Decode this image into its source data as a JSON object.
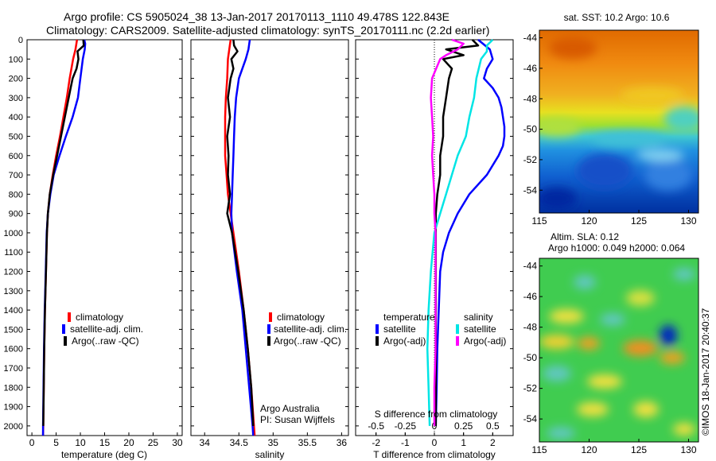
{
  "title_line1": "Argo profile: CS 5905024_38 13-Jan-2017 20170113_1110 49.478S 122.843E",
  "title_line2": "Climatology: CARS2009. Satellite-adjusted climatology: synTS_20170111.nc (2.2d earlier)",
  "map1_title": "sat. SST: 10.2 Argo: 10.6",
  "map2_title1": "Altim. SLA: 0.12",
  "map2_title2": "Argo h1000: 0.049 h2000: 0.064",
  "credit": "©IMOS 18-Jan-2017 20:40:37",
  "footer_org": "Argo Australia",
  "footer_pi": "PI: Susan Wijffels",
  "colors": {
    "climatology": "#ff0000",
    "satellite": "#0000ff",
    "argo": "#000000",
    "sat_salinity": "#00e5e5",
    "argo_salinity": "#ff00ff"
  },
  "chart_data": [
    {
      "type": "line",
      "xlabel": "temperature (deg C)",
      "ylabel": "",
      "xlim": [
        -1,
        31
      ],
      "ylim": [
        2050,
        0
      ],
      "x_ticks": [
        "0",
        "5",
        "10",
        "15",
        "20",
        "25",
        "30"
      ],
      "y_ticks": [
        "0",
        "100",
        "200",
        "300",
        "400",
        "500",
        "600",
        "700",
        "800",
        "900",
        "1000",
        "1100",
        "1200",
        "1300",
        "1400",
        "1500",
        "1600",
        "1700",
        "1800",
        "1900",
        "2000"
      ],
      "legend": [
        "climatology",
        "satellite-adj. clim.",
        "Argo(..raw -QC)"
      ],
      "series": [
        {
          "name": "climatology",
          "depth": [
            0,
            50,
            100,
            200,
            300,
            400,
            500,
            600,
            700,
            800,
            900,
            1000,
            1200,
            1400,
            1600,
            1800,
            2000,
            2050
          ],
          "values": [
            9.3,
            9.0,
            8.5,
            7.8,
            7.2,
            6.5,
            5.8,
            5.0,
            4.3,
            3.7,
            3.3,
            3.1,
            2.9,
            2.7,
            2.55,
            2.45,
            2.35,
            2.3
          ]
        },
        {
          "name": "satellite-adj. clim.",
          "depth": [
            0,
            20,
            50,
            100,
            200,
            300,
            400,
            500,
            600,
            700,
            800,
            900,
            1000,
            1200,
            1400,
            1600,
            1800,
            2000,
            2050
          ],
          "values": [
            10.8,
            11.0,
            10.9,
            10.5,
            10.0,
            9.5,
            8.4,
            7.0,
            5.7,
            4.5,
            3.8,
            3.3,
            3.05,
            2.85,
            2.65,
            2.5,
            2.4,
            2.3,
            2.3
          ]
        },
        {
          "name": "Argo(..raw -QC)",
          "depth": [
            0,
            30,
            60,
            100,
            150,
            200,
            250,
            300,
            400,
            500,
            600,
            700,
            800,
            900,
            1000,
            1200,
            1400,
            1600,
            1800,
            2000
          ],
          "values": [
            10.6,
            10.7,
            9.4,
            9.6,
            9.2,
            8.4,
            8.0,
            7.6,
            6.8,
            6.0,
            5.2,
            4.4,
            3.7,
            3.3,
            3.1,
            2.9,
            2.7,
            2.55,
            2.45,
            2.35
          ]
        }
      ]
    },
    {
      "type": "line",
      "xlabel": "salinity",
      "ylabel": "",
      "xlim": [
        33.8,
        36.1
      ],
      "ylim": [
        2050,
        0
      ],
      "x_ticks": [
        "34",
        "34.5",
        "35",
        "35.5",
        "36"
      ],
      "legend": [
        "climatology",
        "satellite-adj. clim.",
        "Argo(..raw -QC)"
      ],
      "series": [
        {
          "name": "climatology",
          "depth": [
            0,
            50,
            100,
            200,
            300,
            400,
            500,
            600,
            700,
            800,
            900,
            1000,
            1200,
            1400,
            1600,
            1800,
            2000,
            2050
          ],
          "values": [
            34.38,
            34.36,
            34.34,
            34.33,
            34.31,
            34.3,
            34.3,
            34.3,
            34.32,
            34.34,
            34.38,
            34.42,
            34.5,
            34.57,
            34.63,
            34.68,
            34.72,
            34.73
          ]
        },
        {
          "name": "satellite-adj. clim.",
          "depth": [
            0,
            50,
            100,
            200,
            300,
            400,
            500,
            600,
            700,
            800,
            900,
            1000,
            1200,
            1400,
            1600,
            1800,
            2000,
            2050
          ],
          "values": [
            34.66,
            34.64,
            34.6,
            34.5,
            34.46,
            34.44,
            34.43,
            34.42,
            34.41,
            34.4,
            34.39,
            34.4,
            34.47,
            34.55,
            34.6,
            34.65,
            34.7,
            34.71
          ]
        },
        {
          "name": "Argo(..raw -QC)",
          "depth": [
            0,
            30,
            60,
            100,
            150,
            200,
            300,
            400,
            500,
            600,
            700,
            800,
            900,
            1000,
            1200,
            1400,
            1600,
            1800,
            2000
          ],
          "values": [
            34.42,
            34.43,
            34.48,
            34.39,
            34.42,
            34.38,
            34.34,
            34.37,
            34.33,
            34.35,
            34.34,
            34.37,
            34.33,
            34.4,
            34.49,
            34.57,
            34.63,
            34.68,
            34.71
          ]
        }
      ]
    },
    {
      "type": "line",
      "xlabel": "T difference from climatology",
      "xlabel_top": "S difference from climatology",
      "xlim": [
        -2.7,
        2.7
      ],
      "ylim": [
        2050,
        0
      ],
      "x_ticks": [
        "-2",
        "-1",
        "0",
        "1",
        "2"
      ],
      "x_ticks_top": [
        "-0.5",
        "-0.25",
        "0",
        "0.25",
        "0.5"
      ],
      "legend_temperature_title": "temperature",
      "legend_salinity_title": "salinity",
      "legend_temperature": [
        "satellite",
        "Argo(-adj)"
      ],
      "legend_salinity": [
        "satellite",
        "Argo(-adj)"
      ],
      "series": [
        {
          "name": "satellite",
          "group": "temperature",
          "depth": [
            0,
            50,
            100,
            150,
            200,
            250,
            300,
            350,
            400,
            450,
            500,
            550,
            600,
            700,
            800,
            900,
            1000,
            1100,
            1200,
            1400,
            1600,
            1800,
            2000
          ],
          "values": [
            1.5,
            1.9,
            2.0,
            1.8,
            1.7,
            2.0,
            2.2,
            2.3,
            2.35,
            2.4,
            2.4,
            2.35,
            2.2,
            1.8,
            1.2,
            0.8,
            0.5,
            0.3,
            0.2,
            0.15,
            0.1,
            0.08,
            0.05
          ]
        },
        {
          "name": "Argo(-adj)",
          "group": "temperature",
          "depth": [
            0,
            30,
            50,
            80,
            100,
            150,
            200,
            300,
            400,
            500,
            600,
            700,
            800,
            900,
            1000,
            1200,
            1400,
            1600,
            1800,
            2000
          ],
          "values": [
            1.3,
            1.5,
            0.4,
            1.0,
            0.3,
            0.6,
            0.5,
            0.4,
            0.3,
            0.3,
            0.2,
            0.2,
            0.1,
            0.05,
            0.05,
            0.05,
            0.05,
            0.05,
            0.05,
            0.05
          ]
        },
        {
          "name": "satellite",
          "group": "salinity",
          "depth": [
            0,
            30,
            60,
            100,
            200,
            300,
            400,
            500,
            600,
            700,
            800,
            900,
            1000,
            1200,
            1400,
            1600,
            1800,
            2000
          ],
          "values": [
            0.5,
            0.45,
            0.45,
            0.4,
            0.36,
            0.34,
            0.3,
            0.27,
            0.2,
            0.15,
            0.1,
            0.05,
            0.0,
            -0.03,
            -0.05,
            -0.06,
            -0.05,
            -0.04
          ]
        },
        {
          "name": "Argo(-adj)",
          "group": "salinity",
          "depth": [
            0,
            20,
            50,
            80,
            100,
            200,
            300,
            400,
            500,
            600,
            700,
            800,
            900,
            1000,
            1200,
            1400,
            1600,
            1800,
            2000
          ],
          "values": [
            0.15,
            0.25,
            0.2,
            0.1,
            0.05,
            -0.02,
            -0.03,
            -0.02,
            -0.01,
            -0.02,
            -0.01,
            0.0,
            0.0,
            0.01,
            0.01,
            0.01,
            0.01,
            0.0,
            0.0
          ]
        }
      ]
    },
    {
      "type": "heatmap",
      "title": "sat. SST: 10.2 Argo: 10.6",
      "xlim": [
        115,
        131
      ],
      "ylim": [
        -55.5,
        -43.5
      ],
      "x_ticks": [
        "115",
        "120",
        "125",
        "130"
      ],
      "y_ticks": [
        "-44",
        "-46",
        "-48",
        "-50",
        "-52",
        "-54"
      ]
    },
    {
      "type": "heatmap",
      "title": "Altim. SLA: 0.12",
      "subtitle": "Argo h1000: 0.049 h2000: 0.064",
      "xlim": [
        115,
        131
      ],
      "ylim": [
        -55.5,
        -43.5
      ],
      "x_ticks": [
        "115",
        "120",
        "125",
        "130"
      ],
      "y_ticks": [
        "-44",
        "-46",
        "-48",
        "-50",
        "-52",
        "-54"
      ]
    }
  ]
}
